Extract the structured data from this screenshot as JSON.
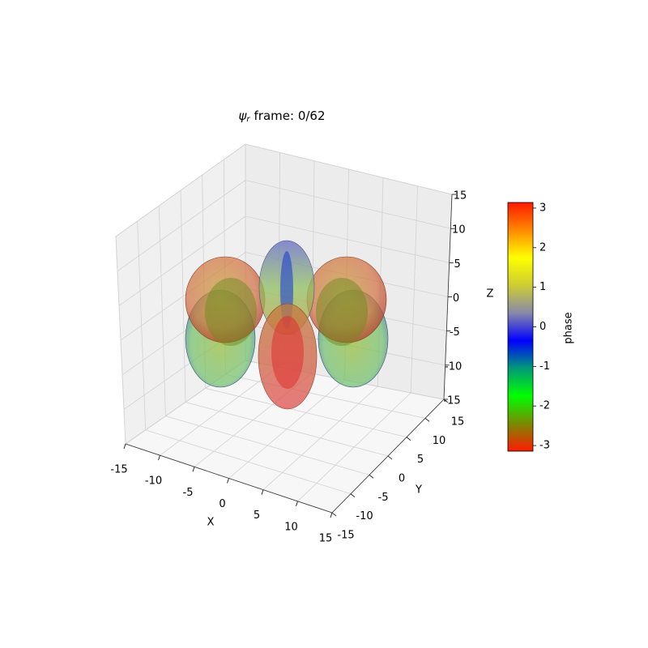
{
  "chart_data": {
    "type": "surface3d",
    "title_symbol": "ψ",
    "title_subscript": "r",
    "title_text": "frame: 0/62",
    "xlabel": "X",
    "ylabel": "Y",
    "zlabel": "Z",
    "xlim": [
      -15,
      15
    ],
    "ylim": [
      -15,
      15
    ],
    "zlim": [
      -15,
      15
    ],
    "xticks": [
      -15,
      -10,
      -5,
      0,
      5,
      10,
      15
    ],
    "yticks": [
      -15,
      -10,
      -5,
      0,
      5,
      10,
      15
    ],
    "zticks": [
      -15,
      -10,
      -5,
      0,
      5,
      10,
      15
    ],
    "grid": true,
    "colorbar": {
      "label": "phase",
      "clim": [
        -3.1416,
        3.1416
      ],
      "ticks": [
        -3,
        -2,
        -1,
        0,
        1,
        2,
        3
      ],
      "colormap": [
        "#ff1a00",
        "#7a8a00",
        "#00ff00",
        "#009977",
        "#0000ff",
        "#8888aa",
        "#cccc33",
        "#ffff00",
        "#ff8800",
        "#ff1a00"
      ]
    }
  }
}
